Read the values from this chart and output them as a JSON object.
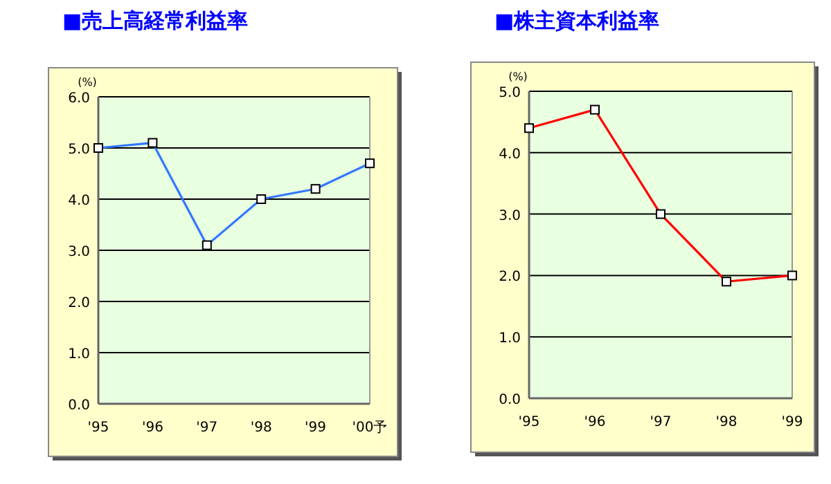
{
  "chart_data": [
    {
      "type": "line",
      "title": "■売上高経常利益率",
      "ylabel": "(%)",
      "categories": [
        "'95",
        "'96",
        "'97",
        "'98",
        "'99",
        "'00予"
      ],
      "series": [
        {
          "color": "#3377ff",
          "values": [
            5.0,
            5.1,
            3.1,
            4.0,
            4.2,
            4.7
          ]
        }
      ],
      "ylim": [
        0,
        6
      ],
      "yticks": [
        {
          "value": 0,
          "label": "0.0"
        },
        {
          "value": 1,
          "label": "1.0"
        },
        {
          "value": 2,
          "label": "2.0"
        },
        {
          "value": 3,
          "label": "3.0"
        },
        {
          "value": 4,
          "label": "4.0"
        },
        {
          "value": 5,
          "label": "5.0"
        },
        {
          "value": 6,
          "label": "6.0"
        }
      ],
      "grid": "y",
      "marker": "square",
      "line_style": "solid"
    },
    {
      "type": "line",
      "title": "■株主資本利益率",
      "ylabel": "(%)",
      "categories": [
        "'95",
        "'96",
        "'97",
        "'98",
        "'99"
      ],
      "series": [
        {
          "color": "#ff0000",
          "values": [
            4.4,
            4.7,
            3.0,
            1.9,
            2.0
          ]
        }
      ],
      "ylim": [
        0,
        5
      ],
      "yticks": [
        {
          "value": 0,
          "label": "0.0"
        },
        {
          "value": 1,
          "label": "1.0"
        },
        {
          "value": 2,
          "label": "2.0"
        },
        {
          "value": 3,
          "label": "3.0"
        },
        {
          "value": 4,
          "label": "4.0"
        },
        {
          "value": 5,
          "label": "5.0"
        }
      ],
      "grid": "y",
      "marker": "square",
      "line_style": "solid"
    }
  ]
}
